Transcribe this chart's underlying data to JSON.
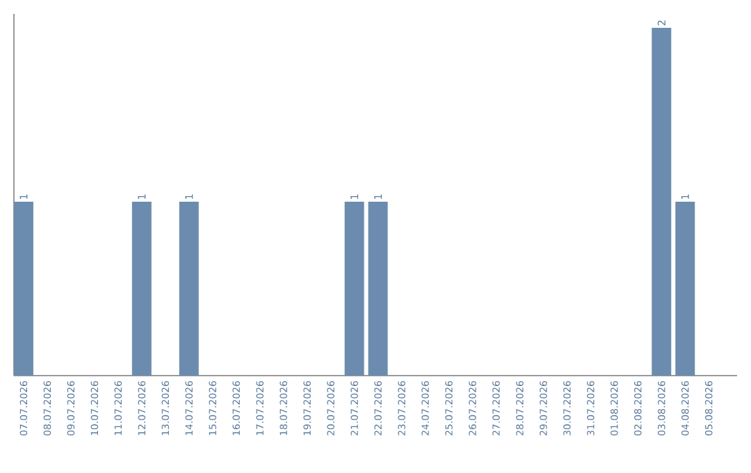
{
  "chart_data": {
    "type": "bar",
    "categories": [
      "07.07.2026",
      "08.07.2026",
      "09.07.2026",
      "10.07.2026",
      "11.07.2026",
      "12.07.2026",
      "13.07.2026",
      "14.07.2026",
      "15.07.2026",
      "16.07.2026",
      "17.07.2026",
      "18.07.2026",
      "19.07.2026",
      "20.07.2026",
      "21.07.2026",
      "22.07.2026",
      "23.07.2026",
      "24.07.2026",
      "25.07.2026",
      "26.07.2026",
      "27.07.2026",
      "28.07.2026",
      "29.07.2026",
      "30.07.2026",
      "31.07.2026",
      "01.08.2026",
      "02.08.2026",
      "03.08.2026",
      "04.08.2026",
      "05.08.2026"
    ],
    "values": [
      1,
      0,
      0,
      0,
      0,
      1,
      0,
      1,
      0,
      0,
      0,
      0,
      0,
      0,
      1,
      1,
      0,
      0,
      0,
      0,
      0,
      0,
      0,
      0,
      0,
      0,
      0,
      2,
      1,
      0
    ],
    "value_labels": [
      "1",
      null,
      null,
      null,
      null,
      "1",
      null,
      "1",
      null,
      null,
      null,
      null,
      null,
      null,
      "1",
      "1",
      null,
      null,
      null,
      null,
      null,
      null,
      null,
      null,
      null,
      null,
      null,
      "2",
      "1",
      null
    ],
    "color": "#6b8cae",
    "ylim": [
      0,
      2
    ],
    "tick_labels": "x"
  }
}
